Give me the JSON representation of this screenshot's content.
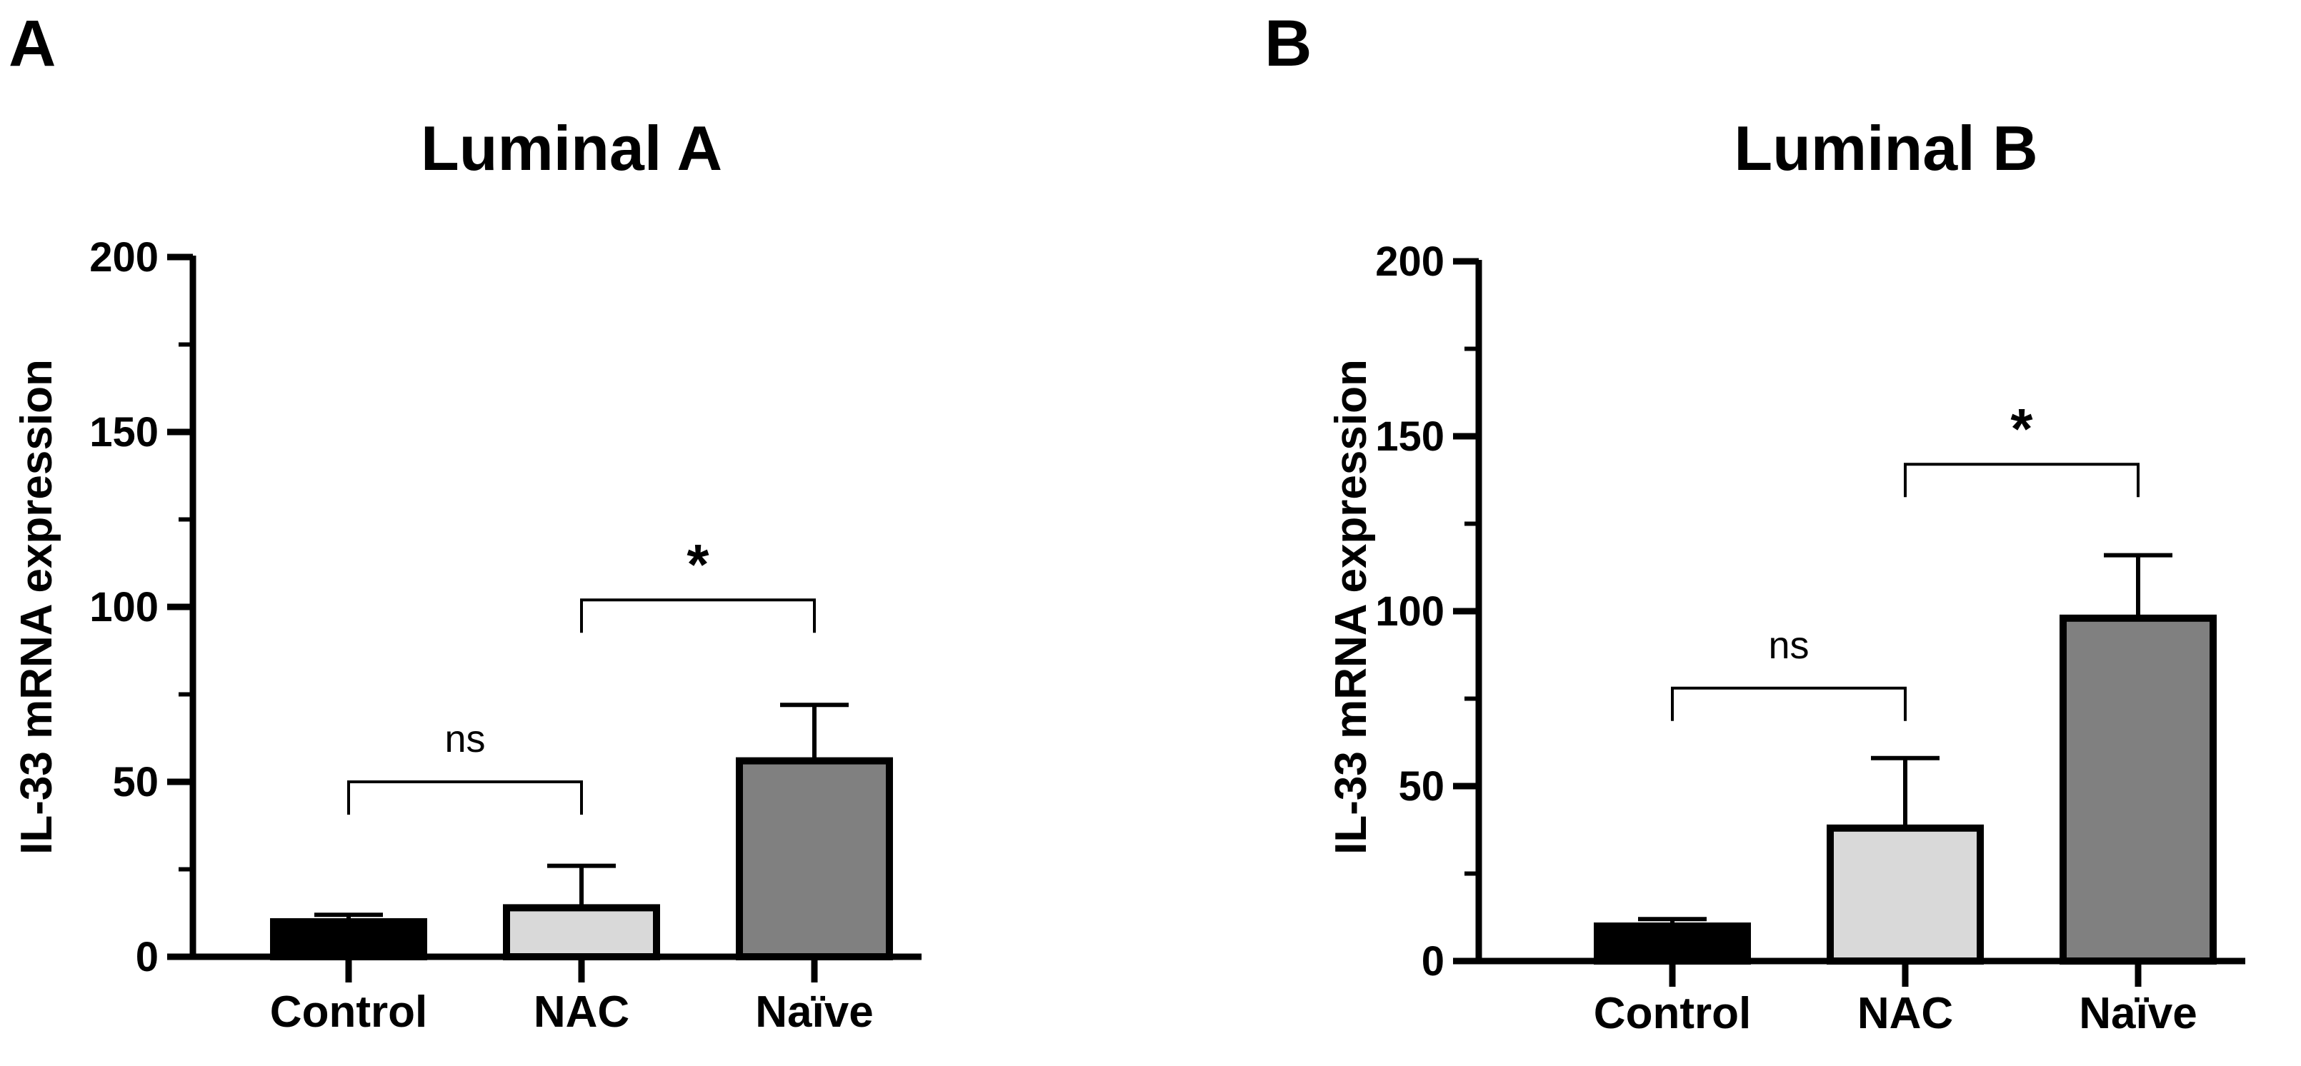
{
  "chart_data": [
    {
      "type": "bar",
      "panel": "A",
      "title": "Luminal A",
      "ylabel": "IL-33 mRNA expression",
      "xlabel": "",
      "ylim": [
        0,
        200
      ],
      "yticks": [
        "0",
        "50",
        "100",
        "150",
        "200"
      ],
      "categories": [
        "Control",
        "NAC",
        "Naïve"
      ],
      "values": [
        10,
        14,
        56
      ],
      "errors": [
        2,
        12,
        16
      ],
      "colors": [
        "#000000",
        "#d9d9d9",
        "#808080"
      ],
      "annotations": [
        {
          "from": "Control",
          "to": "NAC",
          "label": "ns",
          "value": 50
        },
        {
          "from": "NAC",
          "to": "Naïve",
          "label": "*",
          "value": 102
        }
      ]
    },
    {
      "type": "bar",
      "panel": "B",
      "title": "Luminal B",
      "ylabel": "IL-33 mRNA expression",
      "xlabel": "",
      "ylim": [
        0,
        200
      ],
      "yticks": [
        "0",
        "50",
        "100",
        "150",
        "200"
      ],
      "categories": [
        "Control",
        "NAC",
        "Naïve"
      ],
      "values": [
        10,
        38,
        98
      ],
      "errors": [
        2,
        20,
        18
      ],
      "colors": [
        "#000000",
        "#d9d9d9",
        "#808080"
      ],
      "annotations": [
        {
          "from": "Control",
          "to": "NAC",
          "label": "ns",
          "value": 78
        },
        {
          "from": "NAC",
          "to": "Naïve",
          "label": "*",
          "value": 142
        }
      ]
    }
  ]
}
